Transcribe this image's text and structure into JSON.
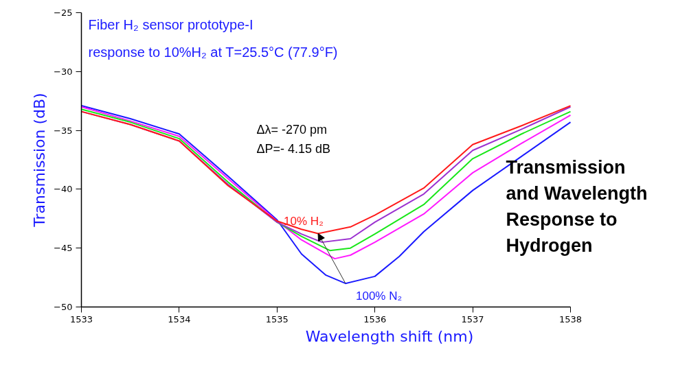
{
  "chart_data": {
    "type": "line",
    "xlabel": "Wavelength shift (nm)",
    "ylabel": "Transmission (dB)",
    "xlim": [
      1533,
      1538
    ],
    "ylim": [
      -50,
      -25
    ],
    "xticks": [
      1533,
      1534,
      1535,
      1536,
      1537,
      1538
    ],
    "yticks": [
      -50,
      -45,
      -40,
      -35,
      -30,
      -25
    ],
    "grid": false,
    "legend": false,
    "marker": "none",
    "line_style": "solid",
    "series": [
      {
        "name": "100% N₂",
        "color": "#1a1aff",
        "x": [
          1533,
          1533.5,
          1534,
          1534.5,
          1535,
          1535.25,
          1535.5,
          1535.7,
          1536,
          1536.25,
          1536.5,
          1537,
          1537.5,
          1538
        ],
        "values": [
          -32.9,
          -34.0,
          -35.3,
          -38.9,
          -42.6,
          -45.5,
          -47.3,
          -48.0,
          -47.4,
          -45.7,
          -43.6,
          -40.1,
          -37.2,
          -34.3
        ]
      },
      {
        "color": "#ff19ff",
        "x": [
          1533,
          1533.5,
          1534,
          1534.5,
          1535,
          1535.25,
          1535.59,
          1535.75,
          1536,
          1536.5,
          1537,
          1537.5,
          1538
        ],
        "values": [
          -33.0,
          -34.2,
          -35.5,
          -39.1,
          -42.7,
          -44.3,
          -45.9,
          -45.6,
          -44.5,
          -42.1,
          -38.6,
          -36.1,
          -33.7
        ]
      },
      {
        "color": "#19e619",
        "x": [
          1533,
          1533.5,
          1534,
          1534.5,
          1535,
          1535.25,
          1535.54,
          1535.75,
          1536,
          1536.5,
          1537,
          1537.5,
          1538
        ],
        "values": [
          -33.2,
          -34.3,
          -35.7,
          -39.4,
          -42.8,
          -44.0,
          -45.2,
          -45.0,
          -43.8,
          -41.3,
          -37.4,
          -35.3,
          -33.4
        ]
      },
      {
        "color": "#9b30d0",
        "x": [
          1533,
          1533.5,
          1534,
          1534.5,
          1535,
          1535.25,
          1535.46,
          1535.75,
          1536,
          1536.5,
          1537,
          1537.5,
          1538
        ],
        "values": [
          -33.4,
          -34.5,
          -35.9,
          -39.6,
          -42.8,
          -43.8,
          -44.5,
          -44.2,
          -42.8,
          -40.4,
          -36.7,
          -34.9,
          -33.0
        ]
      },
      {
        "name": "10% H₂",
        "color": "#ff1a1a",
        "x": [
          1533,
          1533.5,
          1534,
          1534.5,
          1535,
          1535.25,
          1535.42,
          1535.75,
          1536,
          1536.5,
          1537,
          1537.5,
          1538
        ],
        "values": [
          -33.4,
          -34.5,
          -35.9,
          -39.7,
          -42.7,
          -43.4,
          -43.76,
          -43.2,
          -42.2,
          -39.9,
          -36.2,
          -34.6,
          -32.9
        ]
      }
    ],
    "annotations": [
      "Fiber H₂ sensor prototype-I",
      "response to 10%H₂ at T=25.5°C (77.9°F)",
      "Δλ= -270 pm",
      "ΔP=- 4.15 dB",
      "Transmission\nand Wavelength\nResponse to\nHydrogen"
    ]
  }
}
